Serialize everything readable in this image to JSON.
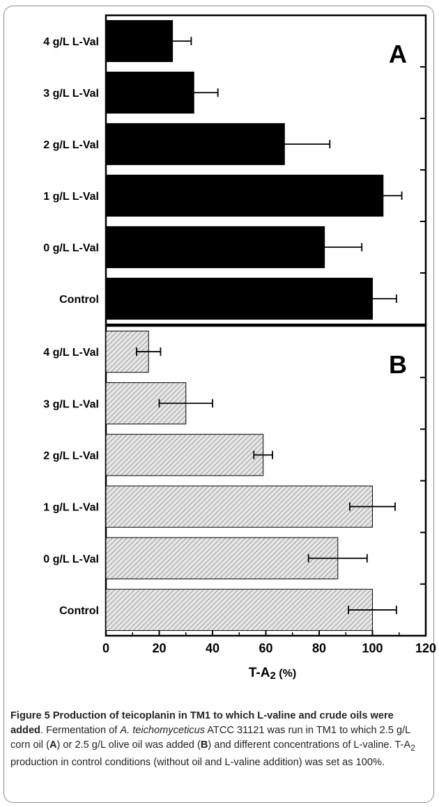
{
  "chart_data": {
    "type": "bar",
    "orientation": "horizontal",
    "xlabel": "T-A2 (%)",
    "xlim": [
      0,
      120
    ],
    "xticks": [
      0,
      20,
      40,
      60,
      80,
      100,
      120
    ],
    "categories": [
      "4 g/L L-Val",
      "3 g/L L-Val",
      "2 g/L L-Val",
      "1 g/L L-Val",
      "0 g/L L-Val",
      "Control"
    ],
    "panels": [
      {
        "label": "A",
        "fill": "solid-black",
        "values": [
          25,
          33,
          67,
          104,
          82,
          100
        ],
        "errors": [
          7,
          9,
          17,
          7,
          14,
          9
        ]
      },
      {
        "label": "B",
        "fill": "grey-hatched",
        "values": [
          16,
          30,
          59,
          100,
          87,
          100
        ],
        "errors": [
          4.5,
          10,
          3.5,
          8.5,
          11,
          9
        ]
      }
    ]
  },
  "caption": {
    "title": "Figure 5 Production of teicoplanin in TM1 to which L-valine and crude oils were added",
    "text": {
      "p1": ". Fermentation of ",
      "organism": "A. teichomyceticus",
      "p2": " ATCC 31121 was run in TM1 to which 2.5 g/L corn oil (",
      "refA": "A",
      "p3": ") or 2.5 g/L olive oil was added (",
      "refB": "B",
      "p4": ") and different concentrations of L-valine. T-A",
      "sub": "2",
      "p5": " production in control conditions (without oil and L-valine addition) was set as 100%."
    }
  },
  "colors": {
    "bar_solid": "#000000",
    "hatch_bg": "#e6e6e6",
    "hatch_line": "#8a8a8a"
  }
}
